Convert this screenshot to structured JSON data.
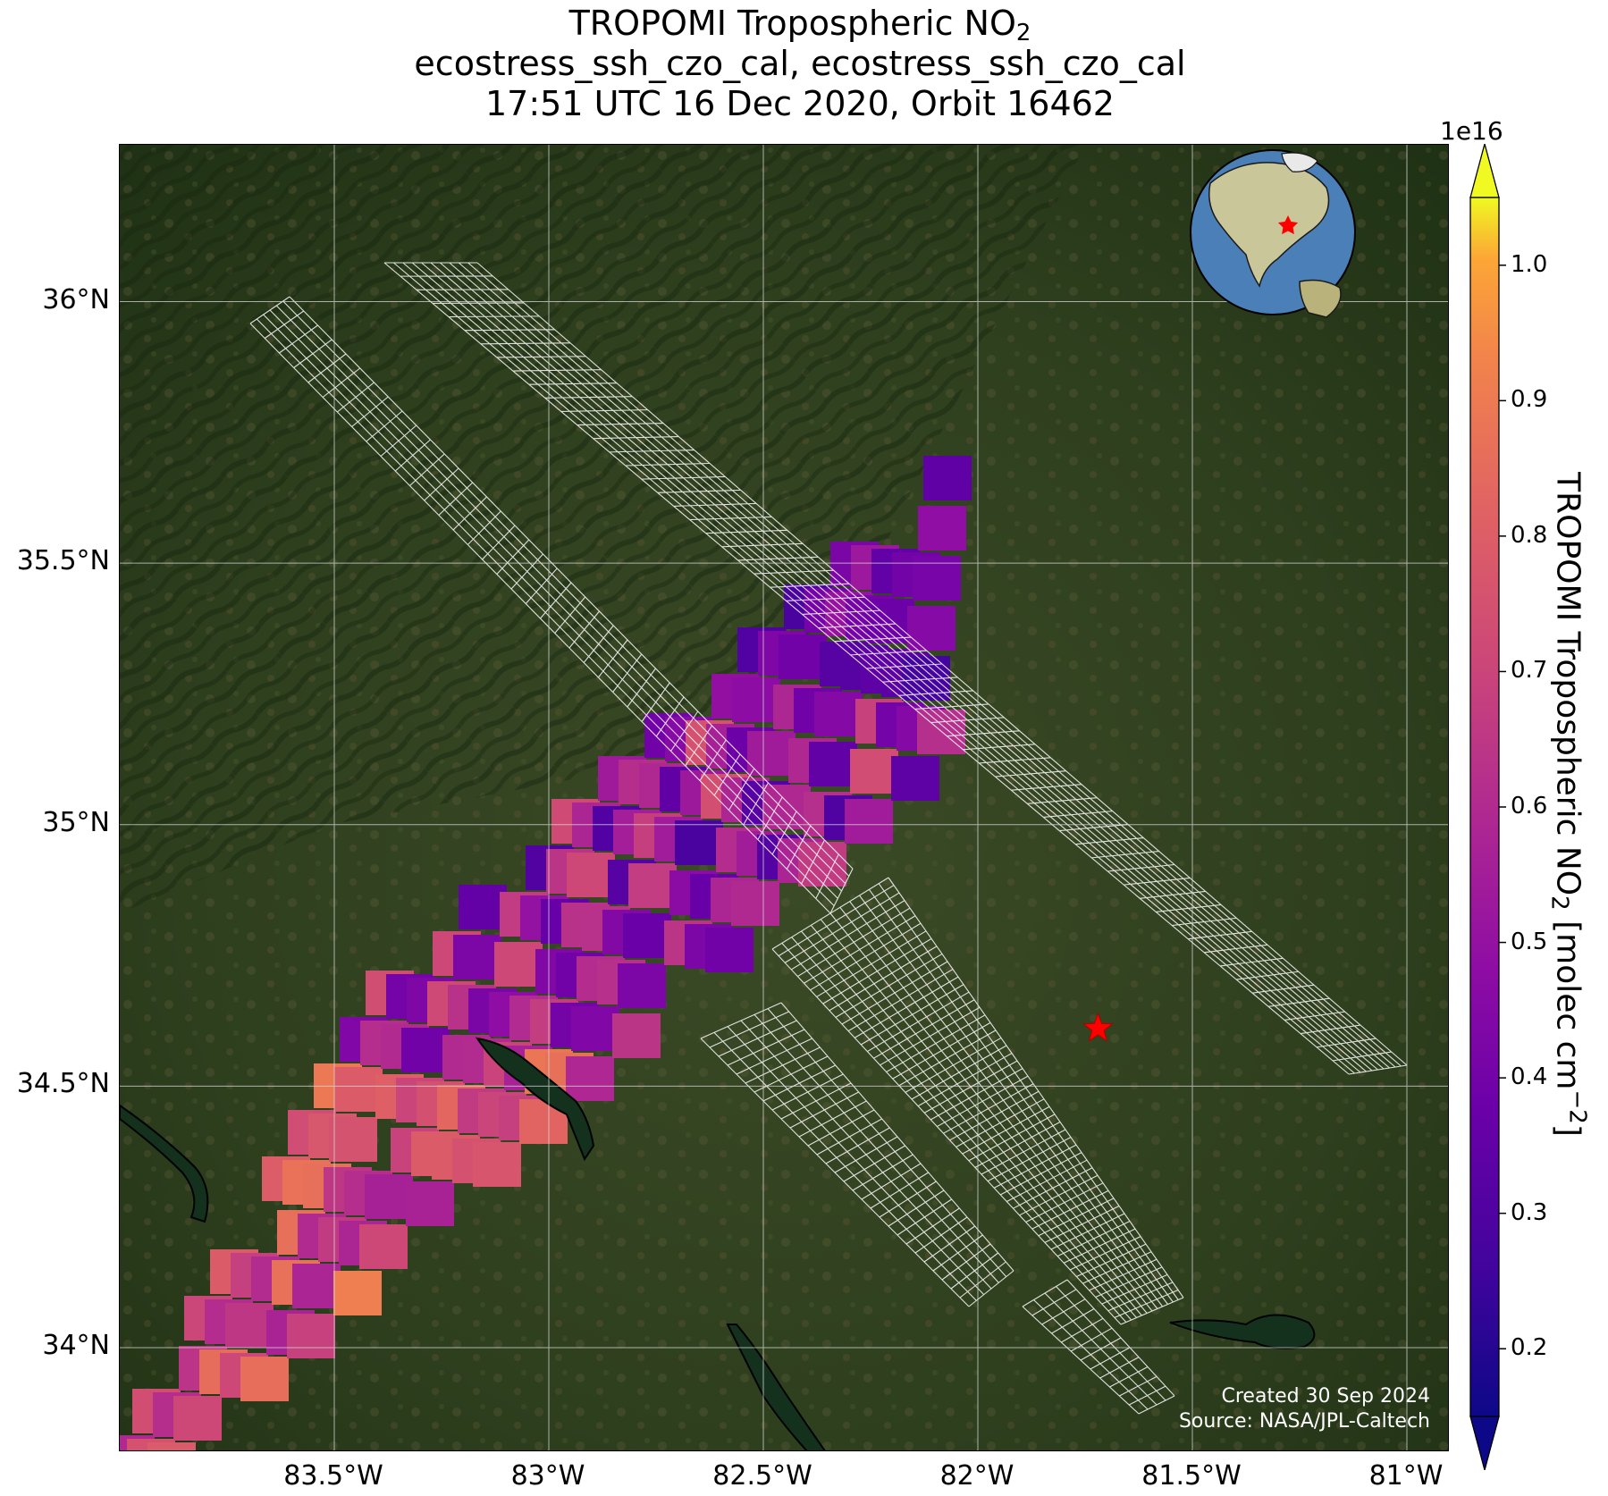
{
  "title": {
    "line1_prefix": "TROPOMI Tropospheric NO",
    "line1_sub": "2",
    "line2": "ecostress_ssh_czo_cal, ecostress_ssh_czo_cal",
    "line3": "17:51 UTC 16 Dec 2020, Orbit 16462"
  },
  "map": {
    "lon_range": [
      -84.0,
      -80.9
    ],
    "lat_range": [
      33.8,
      36.3
    ],
    "lat_ticks": [
      "36°N",
      "35.5°N",
      "35°N",
      "34.5°N",
      "34°N"
    ],
    "lon_ticks": [
      "83.5°W",
      "83°W",
      "82.5°W",
      "82°W",
      "81.5°W",
      "81°W"
    ],
    "site_marker": {
      "symbol": "star",
      "lon": -81.72,
      "lat": 34.61,
      "color": "#ff0000"
    },
    "inset_globe": {
      "description_icon": "globe-icon",
      "marker_color": "#ff0000"
    },
    "credits": {
      "line1": "Created 30 Sep 2024",
      "line2": "Source: NASA/JPL-Caltech"
    }
  },
  "colorbar": {
    "colormap": "plasma",
    "range": [
      0.15,
      1.05
    ],
    "multiplier": "1e16",
    "ticks": [
      "1.0",
      "0.9",
      "0.8",
      "0.7",
      "0.6",
      "0.5",
      "0.4",
      "0.3",
      "0.2"
    ],
    "label_prefix": "TROPOMI Tropospheric NO",
    "label_sub": "2",
    "label_mid": " [molec cm",
    "label_sup": "−2",
    "label_suffix": "]",
    "extend": "both"
  },
  "colors": {
    "background_terrain": "#2c3d1c",
    "swath_outline": "#ffffff",
    "gridline": "#d8d8d8"
  }
}
